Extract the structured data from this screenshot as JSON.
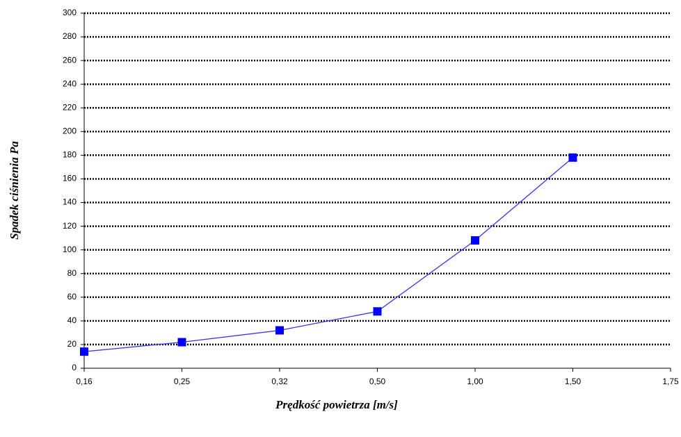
{
  "chart_data": {
    "type": "line",
    "x_label": "Prędkość powietrza [m/s]",
    "y_label": "Spadek ciśnienia Pa",
    "categories": [
      "0,16",
      "0,25",
      "0,32",
      "0,50",
      "1,00",
      "1,50",
      "1,75"
    ],
    "series": [
      {
        "name": "Spadek ciśnienia",
        "color": "#3333ff",
        "marker_color": "#0000ff",
        "values": [
          14,
          22,
          32,
          48,
          108,
          178,
          null
        ]
      }
    ],
    "ylim": [
      0,
      300
    ],
    "yticks": [
      0,
      20,
      40,
      60,
      80,
      100,
      120,
      140,
      160,
      180,
      200,
      220,
      240,
      260,
      280,
      300
    ],
    "grid": true
  }
}
